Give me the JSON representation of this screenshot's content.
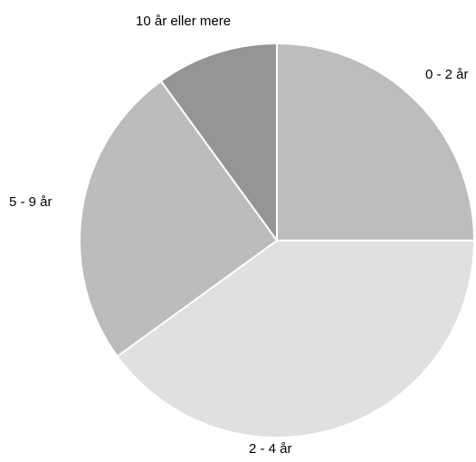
{
  "chart_data": {
    "type": "pie",
    "categories": [
      "0 - 2 år",
      "2 - 4 år",
      "5 - 9 år",
      "10 år eller mere"
    ],
    "values": [
      25,
      40,
      25,
      10
    ],
    "colors": [
      "#bdbdbd",
      "#e0e0e0",
      "#bcbcbc",
      "#959595"
    ],
    "start_angle_deg": 0,
    "direction": "clockwise"
  }
}
